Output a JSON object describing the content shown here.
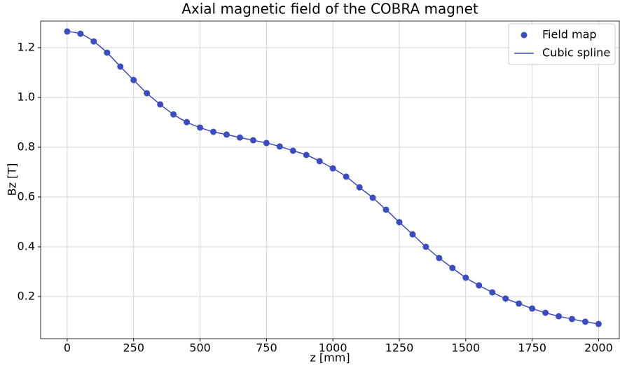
{
  "chart_data": {
    "type": "scatter_line",
    "title": "Axial magnetic field of the COBRA magnet",
    "xlabel": "z [mm]",
    "ylabel": "Bz [T]",
    "x": [
      0,
      50,
      100,
      150,
      200,
      250,
      300,
      350,
      400,
      450,
      500,
      550,
      600,
      650,
      700,
      750,
      800,
      850,
      900,
      950,
      1000,
      1050,
      1100,
      1150,
      1200,
      1250,
      1300,
      1350,
      1400,
      1450,
      1500,
      1550,
      1600,
      1650,
      1700,
      1750,
      1800,
      1850,
      1900,
      1950,
      2000
    ],
    "series": [
      {
        "name": "Field map",
        "kind": "marker",
        "color": "#3b4cc0",
        "values": [
          1.265,
          1.256,
          1.225,
          1.18,
          1.124,
          1.07,
          1.017,
          0.972,
          0.932,
          0.901,
          0.879,
          0.862,
          0.851,
          0.839,
          0.828,
          0.817,
          0.803,
          0.786,
          0.769,
          0.744,
          0.715,
          0.682,
          0.639,
          0.597,
          0.549,
          0.499,
          0.45,
          0.4,
          0.355,
          0.315,
          0.276,
          0.245,
          0.217,
          0.192,
          0.172,
          0.152,
          0.135,
          0.121,
          0.11,
          0.099,
          0.09
        ]
      },
      {
        "name": "Cubic spline",
        "kind": "line",
        "color": "#3b4cc0",
        "values": [
          1.265,
          1.256,
          1.225,
          1.18,
          1.124,
          1.07,
          1.017,
          0.972,
          0.932,
          0.901,
          0.879,
          0.862,
          0.851,
          0.839,
          0.828,
          0.817,
          0.803,
          0.786,
          0.769,
          0.744,
          0.715,
          0.682,
          0.639,
          0.597,
          0.549,
          0.499,
          0.45,
          0.4,
          0.355,
          0.315,
          0.276,
          0.245,
          0.217,
          0.192,
          0.172,
          0.152,
          0.135,
          0.121,
          0.11,
          0.099,
          0.09
        ]
      }
    ],
    "xlim": [
      -100,
      2078
    ],
    "ylim": [
      0.031,
      1.307
    ],
    "xticks": [
      0,
      250,
      500,
      750,
      1000,
      1250,
      1500,
      1750,
      2000
    ],
    "yticks": [
      0.2,
      0.4,
      0.6,
      0.8,
      {
        "value": 1,
        "label": "1.0"
      },
      1.2
    ],
    "grid": true,
    "legend": "upper right"
  }
}
